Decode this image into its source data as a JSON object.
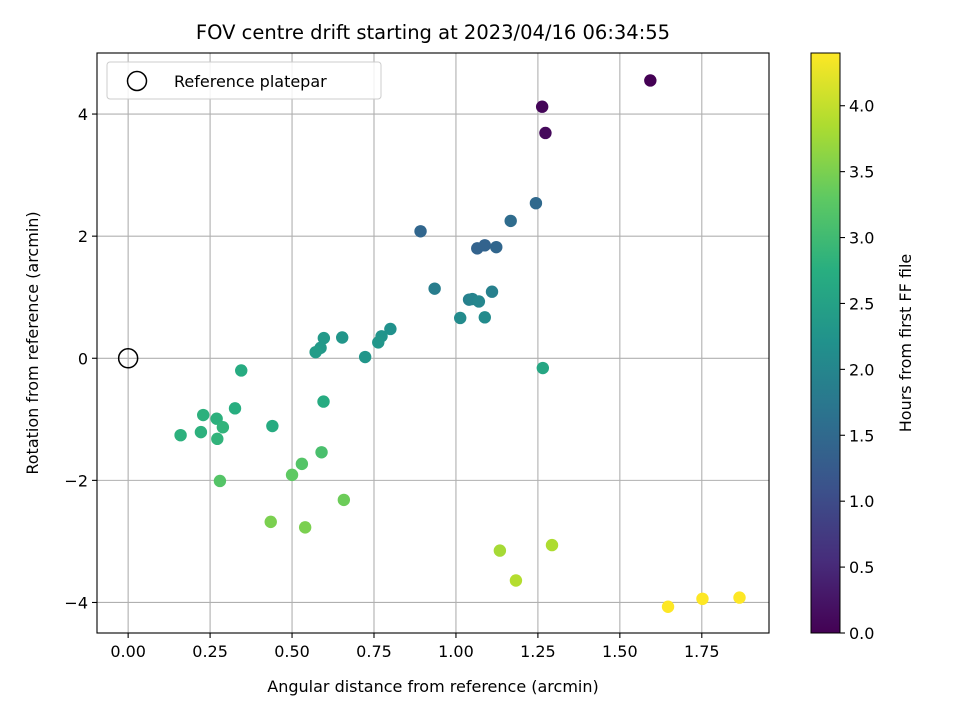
{
  "chart_data": {
    "type": "scatter",
    "title": "FOV centre drift starting at 2023/04/16 06:34:55",
    "xlabel": "Angular distance from reference (arcmin)",
    "ylabel": "Rotation from reference (arcmin)",
    "xlim": [
      -0.095,
      1.955
    ],
    "ylim": [
      -4.5,
      5.0
    ],
    "x_ticks": [
      0.0,
      0.25,
      0.5,
      0.75,
      1.0,
      1.25,
      1.5,
      1.75
    ],
    "x_tick_labels": [
      "0.00",
      "0.25",
      "0.50",
      "0.75",
      "1.00",
      "1.25",
      "1.50",
      "1.75"
    ],
    "y_ticks": [
      -4,
      -2,
      0,
      2,
      4
    ],
    "y_tick_labels": [
      "−4",
      "−2",
      "0",
      "2",
      "4"
    ],
    "grid": true,
    "legend": {
      "placement": "top-left",
      "entries": [
        {
          "label": "Reference platepar",
          "marker": "open-circle"
        }
      ]
    },
    "reference_point": {
      "x": 0.0,
      "y": 0.0
    },
    "colorbar": {
      "label": "Hours from first FF file",
      "colormap": "viridis",
      "range": [
        0.0,
        4.4
      ],
      "ticks": [
        0.0,
        0.5,
        1.0,
        1.5,
        2.0,
        2.5,
        3.0,
        3.5,
        4.0
      ],
      "tick_labels": [
        "0.0",
        "0.5",
        "1.0",
        "1.5",
        "2.0",
        "2.5",
        "3.0",
        "3.5",
        "4.0"
      ]
    },
    "series": [
      {
        "points": [
          {
            "x": 1.593,
            "y": 4.55,
            "c": 0.0
          },
          {
            "x": 1.263,
            "y": 4.12,
            "c": 0.05
          },
          {
            "x": 1.273,
            "y": 3.69,
            "c": 0.1
          },
          {
            "x": 1.244,
            "y": 2.54,
            "c": 1.5
          },
          {
            "x": 1.167,
            "y": 2.25,
            "c": 1.55
          },
          {
            "x": 0.892,
            "y": 2.08,
            "c": 1.45
          },
          {
            "x": 1.065,
            "y": 1.8,
            "c": 1.4
          },
          {
            "x": 1.088,
            "y": 1.85,
            "c": 1.4
          },
          {
            "x": 1.123,
            "y": 1.82,
            "c": 1.45
          },
          {
            "x": 0.935,
            "y": 1.14,
            "c": 1.85
          },
          {
            "x": 1.11,
            "y": 1.09,
            "c": 1.9
          },
          {
            "x": 1.04,
            "y": 0.96,
            "c": 1.9
          },
          {
            "x": 1.05,
            "y": 0.97,
            "c": 1.95
          },
          {
            "x": 1.07,
            "y": 0.93,
            "c": 2.0
          },
          {
            "x": 1.013,
            "y": 0.66,
            "c": 2.1
          },
          {
            "x": 1.088,
            "y": 0.67,
            "c": 2.1
          },
          {
            "x": 0.8,
            "y": 0.48,
            "c": 2.2
          },
          {
            "x": 0.773,
            "y": 0.36,
            "c": 2.25
          },
          {
            "x": 0.763,
            "y": 0.26,
            "c": 2.3
          },
          {
            "x": 0.653,
            "y": 0.34,
            "c": 2.3
          },
          {
            "x": 0.597,
            "y": 0.33,
            "c": 2.35
          },
          {
            "x": 0.587,
            "y": 0.17,
            "c": 2.35
          },
          {
            "x": 0.572,
            "y": 0.1,
            "c": 2.4
          },
          {
            "x": 0.723,
            "y": 0.02,
            "c": 2.3
          },
          {
            "x": 0.345,
            "y": -0.2,
            "c": 2.7
          },
          {
            "x": 1.265,
            "y": -0.16,
            "c": 2.6
          },
          {
            "x": 0.596,
            "y": -0.71,
            "c": 2.7
          },
          {
            "x": 0.326,
            "y": -0.82,
            "c": 2.75
          },
          {
            "x": 0.229,
            "y": -0.93,
            "c": 2.8
          },
          {
            "x": 0.27,
            "y": -0.99,
            "c": 2.8
          },
          {
            "x": 0.289,
            "y": -1.13,
            "c": 2.85
          },
          {
            "x": 0.44,
            "y": -1.11,
            "c": 2.7
          },
          {
            "x": 0.16,
            "y": -1.26,
            "c": 2.8
          },
          {
            "x": 0.222,
            "y": -1.21,
            "c": 2.8
          },
          {
            "x": 0.272,
            "y": -1.32,
            "c": 2.85
          },
          {
            "x": 0.59,
            "y": -1.54,
            "c": 3.1
          },
          {
            "x": 0.53,
            "y": -1.73,
            "c": 3.2
          },
          {
            "x": 0.5,
            "y": -1.91,
            "c": 3.3
          },
          {
            "x": 0.28,
            "y": -2.01,
            "c": 3.2
          },
          {
            "x": 0.658,
            "y": -2.32,
            "c": 3.4
          },
          {
            "x": 0.435,
            "y": -2.68,
            "c": 3.5
          },
          {
            "x": 0.54,
            "y": -2.77,
            "c": 3.5
          },
          {
            "x": 1.134,
            "y": -3.15,
            "c": 3.8
          },
          {
            "x": 1.293,
            "y": -3.06,
            "c": 3.85
          },
          {
            "x": 1.183,
            "y": -3.64,
            "c": 3.9
          },
          {
            "x": 1.647,
            "y": -4.07,
            "c": 4.4
          },
          {
            "x": 1.752,
            "y": -3.94,
            "c": 4.4
          },
          {
            "x": 1.865,
            "y": -3.92,
            "c": 4.4
          }
        ]
      }
    ]
  }
}
